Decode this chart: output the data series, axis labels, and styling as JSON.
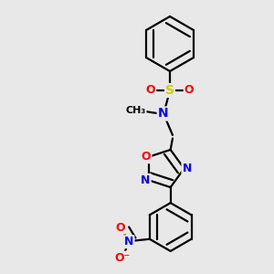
{
  "bg_color": "#e8e8e8",
  "bond_color": "#000000",
  "bond_width": 1.6,
  "dbl_sep": 0.055,
  "atom_colors": {
    "N": "#0000ff",
    "O": "#ff0000",
    "S": "#cccc00",
    "C": "#000000"
  }
}
